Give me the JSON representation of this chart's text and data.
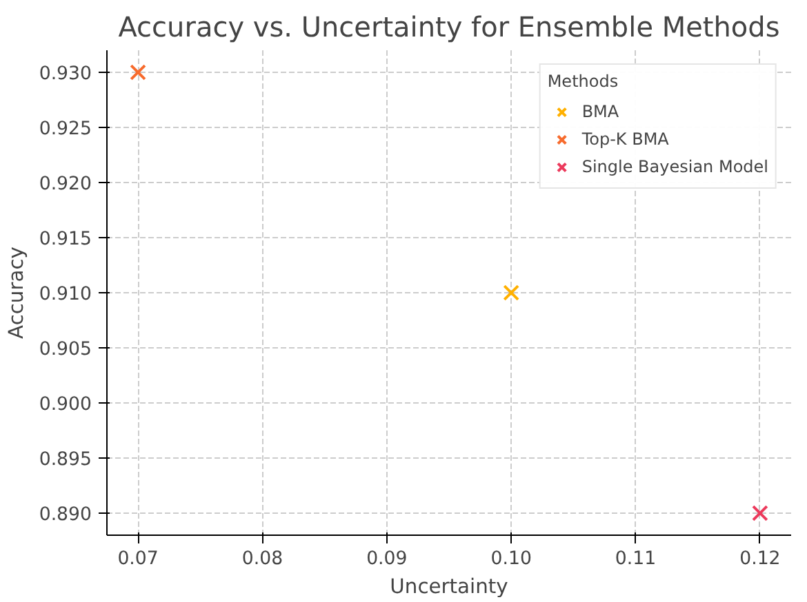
{
  "chart_data": {
    "type": "scatter",
    "title": "Accuracy vs. Uncertainty for Ensemble Methods",
    "xlabel": "Uncertainty",
    "ylabel": "Accuracy",
    "legend_title": "Methods",
    "legend": "top right",
    "grid": true,
    "marker": "cross",
    "xlim": [
      0.0675,
      0.1225
    ],
    "ylim": [
      0.888,
      0.932
    ],
    "xticks": [
      {
        "value": 0.07,
        "label": "0.07"
      },
      {
        "value": 0.08,
        "label": "0.08"
      },
      {
        "value": 0.09,
        "label": "0.09"
      },
      {
        "value": 0.1,
        "label": "0.10"
      },
      {
        "value": 0.11,
        "label": "0.11"
      },
      {
        "value": 0.12,
        "label": "0.12"
      }
    ],
    "yticks": [
      {
        "value": 0.89,
        "label": "0.890"
      },
      {
        "value": 0.895,
        "label": "0.895"
      },
      {
        "value": 0.9,
        "label": "0.900"
      },
      {
        "value": 0.905,
        "label": "0.905"
      },
      {
        "value": 0.91,
        "label": "0.910"
      },
      {
        "value": 0.915,
        "label": "0.915"
      },
      {
        "value": 0.92,
        "label": "0.920"
      },
      {
        "value": 0.925,
        "label": "0.925"
      },
      {
        "value": 0.93,
        "label": "0.930"
      }
    ],
    "series": [
      {
        "name": "BMA",
        "color": "#ffb000",
        "x": [
          0.1
        ],
        "values": [
          0.91
        ]
      },
      {
        "name": "Top-K BMA",
        "color": "#f76b2d",
        "x": [
          0.07
        ],
        "values": [
          0.93
        ]
      },
      {
        "name": "Single Bayesian Model",
        "color": "#ec3a5c",
        "x": [
          0.12
        ],
        "values": [
          0.89
        ]
      }
    ]
  }
}
